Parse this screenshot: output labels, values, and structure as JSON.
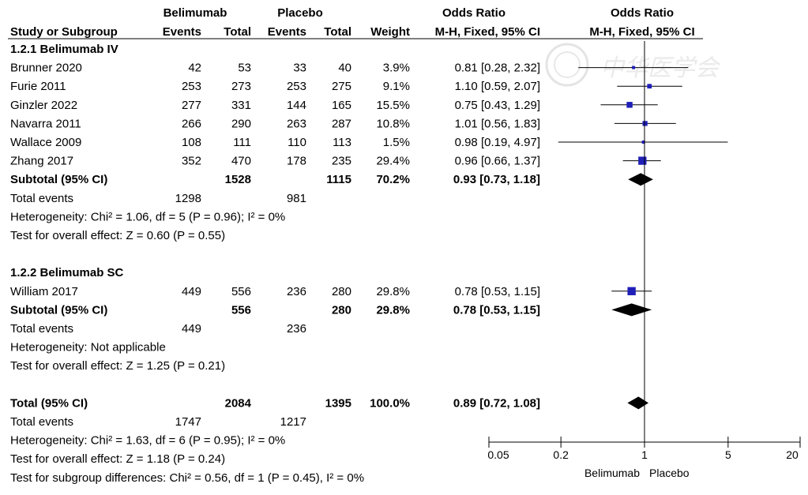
{
  "header": {
    "group1": "Belimumab",
    "group2": "Placebo",
    "or_header": "Odds Ratio",
    "plot_header": "Odds Ratio",
    "col_study": "Study or Subgroup",
    "col_events1": "Events",
    "col_total1": "Total",
    "col_events2": "Events",
    "col_total2": "Total",
    "col_weight": "Weight",
    "col_ci": "M-H, Fixed, 95% CI",
    "col_plot": "M-H, Fixed, 95% CI"
  },
  "watermark": {
    "text": "中华医学会"
  },
  "chart_data": {
    "type": "forest",
    "x_scale": "log",
    "xlim": [
      0.05,
      20
    ],
    "null_value": 1,
    "ticks": [
      0.05,
      0.2,
      1,
      5,
      20
    ],
    "tick_labels": [
      "0.05",
      "0.2",
      "1",
      "5",
      "20"
    ],
    "favours_left": "Belimumab",
    "favours_right": "Placebo",
    "subgroups": [
      {
        "label": "1.2.1 Belimumab IV",
        "studies": [
          {
            "name": "Brunner 2020",
            "e1": "42",
            "n1": "53",
            "e2": "33",
            "n2": "40",
            "weight": "3.9%",
            "ci_text": "0.81 [0.28, 2.32]",
            "or": 0.81,
            "lo": 0.28,
            "hi": 2.32
          },
          {
            "name": "Furie 2011",
            "e1": "253",
            "n1": "273",
            "e2": "253",
            "n2": "275",
            "weight": "9.1%",
            "ci_text": "1.10 [0.59, 2.07]",
            "or": 1.1,
            "lo": 0.59,
            "hi": 2.07
          },
          {
            "name": "Ginzler 2022",
            "e1": "277",
            "n1": "331",
            "e2": "144",
            "n2": "165",
            "weight": "15.5%",
            "ci_text": "0.75 [0.43, 1.29]",
            "or": 0.75,
            "lo": 0.43,
            "hi": 1.29
          },
          {
            "name": "Navarra 2011",
            "e1": "266",
            "n1": "290",
            "e2": "263",
            "n2": "287",
            "weight": "10.8%",
            "ci_text": "1.01 [0.56, 1.83]",
            "or": 1.01,
            "lo": 0.56,
            "hi": 1.83
          },
          {
            "name": "Wallace 2009",
            "e1": "108",
            "n1": "111",
            "e2": "110",
            "n2": "113",
            "weight": "1.5%",
            "ci_text": "0.98 [0.19, 4.97]",
            "or": 0.98,
            "lo": 0.19,
            "hi": 4.97
          },
          {
            "name": "Zhang 2017",
            "e1": "352",
            "n1": "470",
            "e2": "178",
            "n2": "235",
            "weight": "29.4%",
            "ci_text": "0.96 [0.66, 1.37]",
            "or": 0.96,
            "lo": 0.66,
            "hi": 1.37
          }
        ],
        "subtotal": {
          "label": "Subtotal (95% CI)",
          "n1": "1528",
          "n2": "1115",
          "weight": "70.2%",
          "ci_text": "0.93 [0.73, 1.18]",
          "or": 0.93,
          "lo": 0.73,
          "hi": 1.18
        },
        "total_events": {
          "label": "Total events",
          "e1": "1298",
          "e2": "981"
        },
        "heterogeneity": "Heterogeneity: Chi² = 1.06, df = 5 (P = 0.96); I² = 0%",
        "overall": "Test for overall effect: Z = 0.60 (P = 0.55)"
      },
      {
        "label": "1.2.2 Belimumab SC",
        "studies": [
          {
            "name": "William 2017",
            "e1": "449",
            "n1": "556",
            "e2": "236",
            "n2": "280",
            "weight": "29.8%",
            "ci_text": "0.78 [0.53, 1.15]",
            "or": 0.78,
            "lo": 0.53,
            "hi": 1.15
          }
        ],
        "subtotal": {
          "label": "Subtotal (95% CI)",
          "n1": "556",
          "n2": "280",
          "weight": "29.8%",
          "ci_text": "0.78 [0.53, 1.15]",
          "or": 0.78,
          "lo": 0.53,
          "hi": 1.15
        },
        "total_events": {
          "label": "Total events",
          "e1": "449",
          "e2": "236"
        },
        "heterogeneity": "Heterogeneity: Not applicable",
        "overall": "Test for overall effect: Z = 1.25 (P = 0.21)"
      }
    ],
    "total": {
      "label": "Total (95% CI)",
      "n1": "2084",
      "n2": "1395",
      "weight": "100.0%",
      "ci_text": "0.89 [0.72, 1.08]",
      "or": 0.89,
      "lo": 0.72,
      "hi": 1.08
    },
    "total_events": {
      "label": "Total events",
      "e1": "1747",
      "e2": "1217"
    },
    "heterogeneity": "Heterogeneity: Chi² = 1.63, df = 6 (P = 0.95); I² = 0%",
    "overall": "Test for overall effect: Z = 1.18 (P = 0.24)",
    "subgroup_test": "Test for subgroup differences: Chi² = 0.56, df = 1 (P = 0.45), I² = 0%",
    "colors": {
      "marker": "#1f1fb8",
      "diamond": "#000000",
      "line": "#000000"
    }
  }
}
